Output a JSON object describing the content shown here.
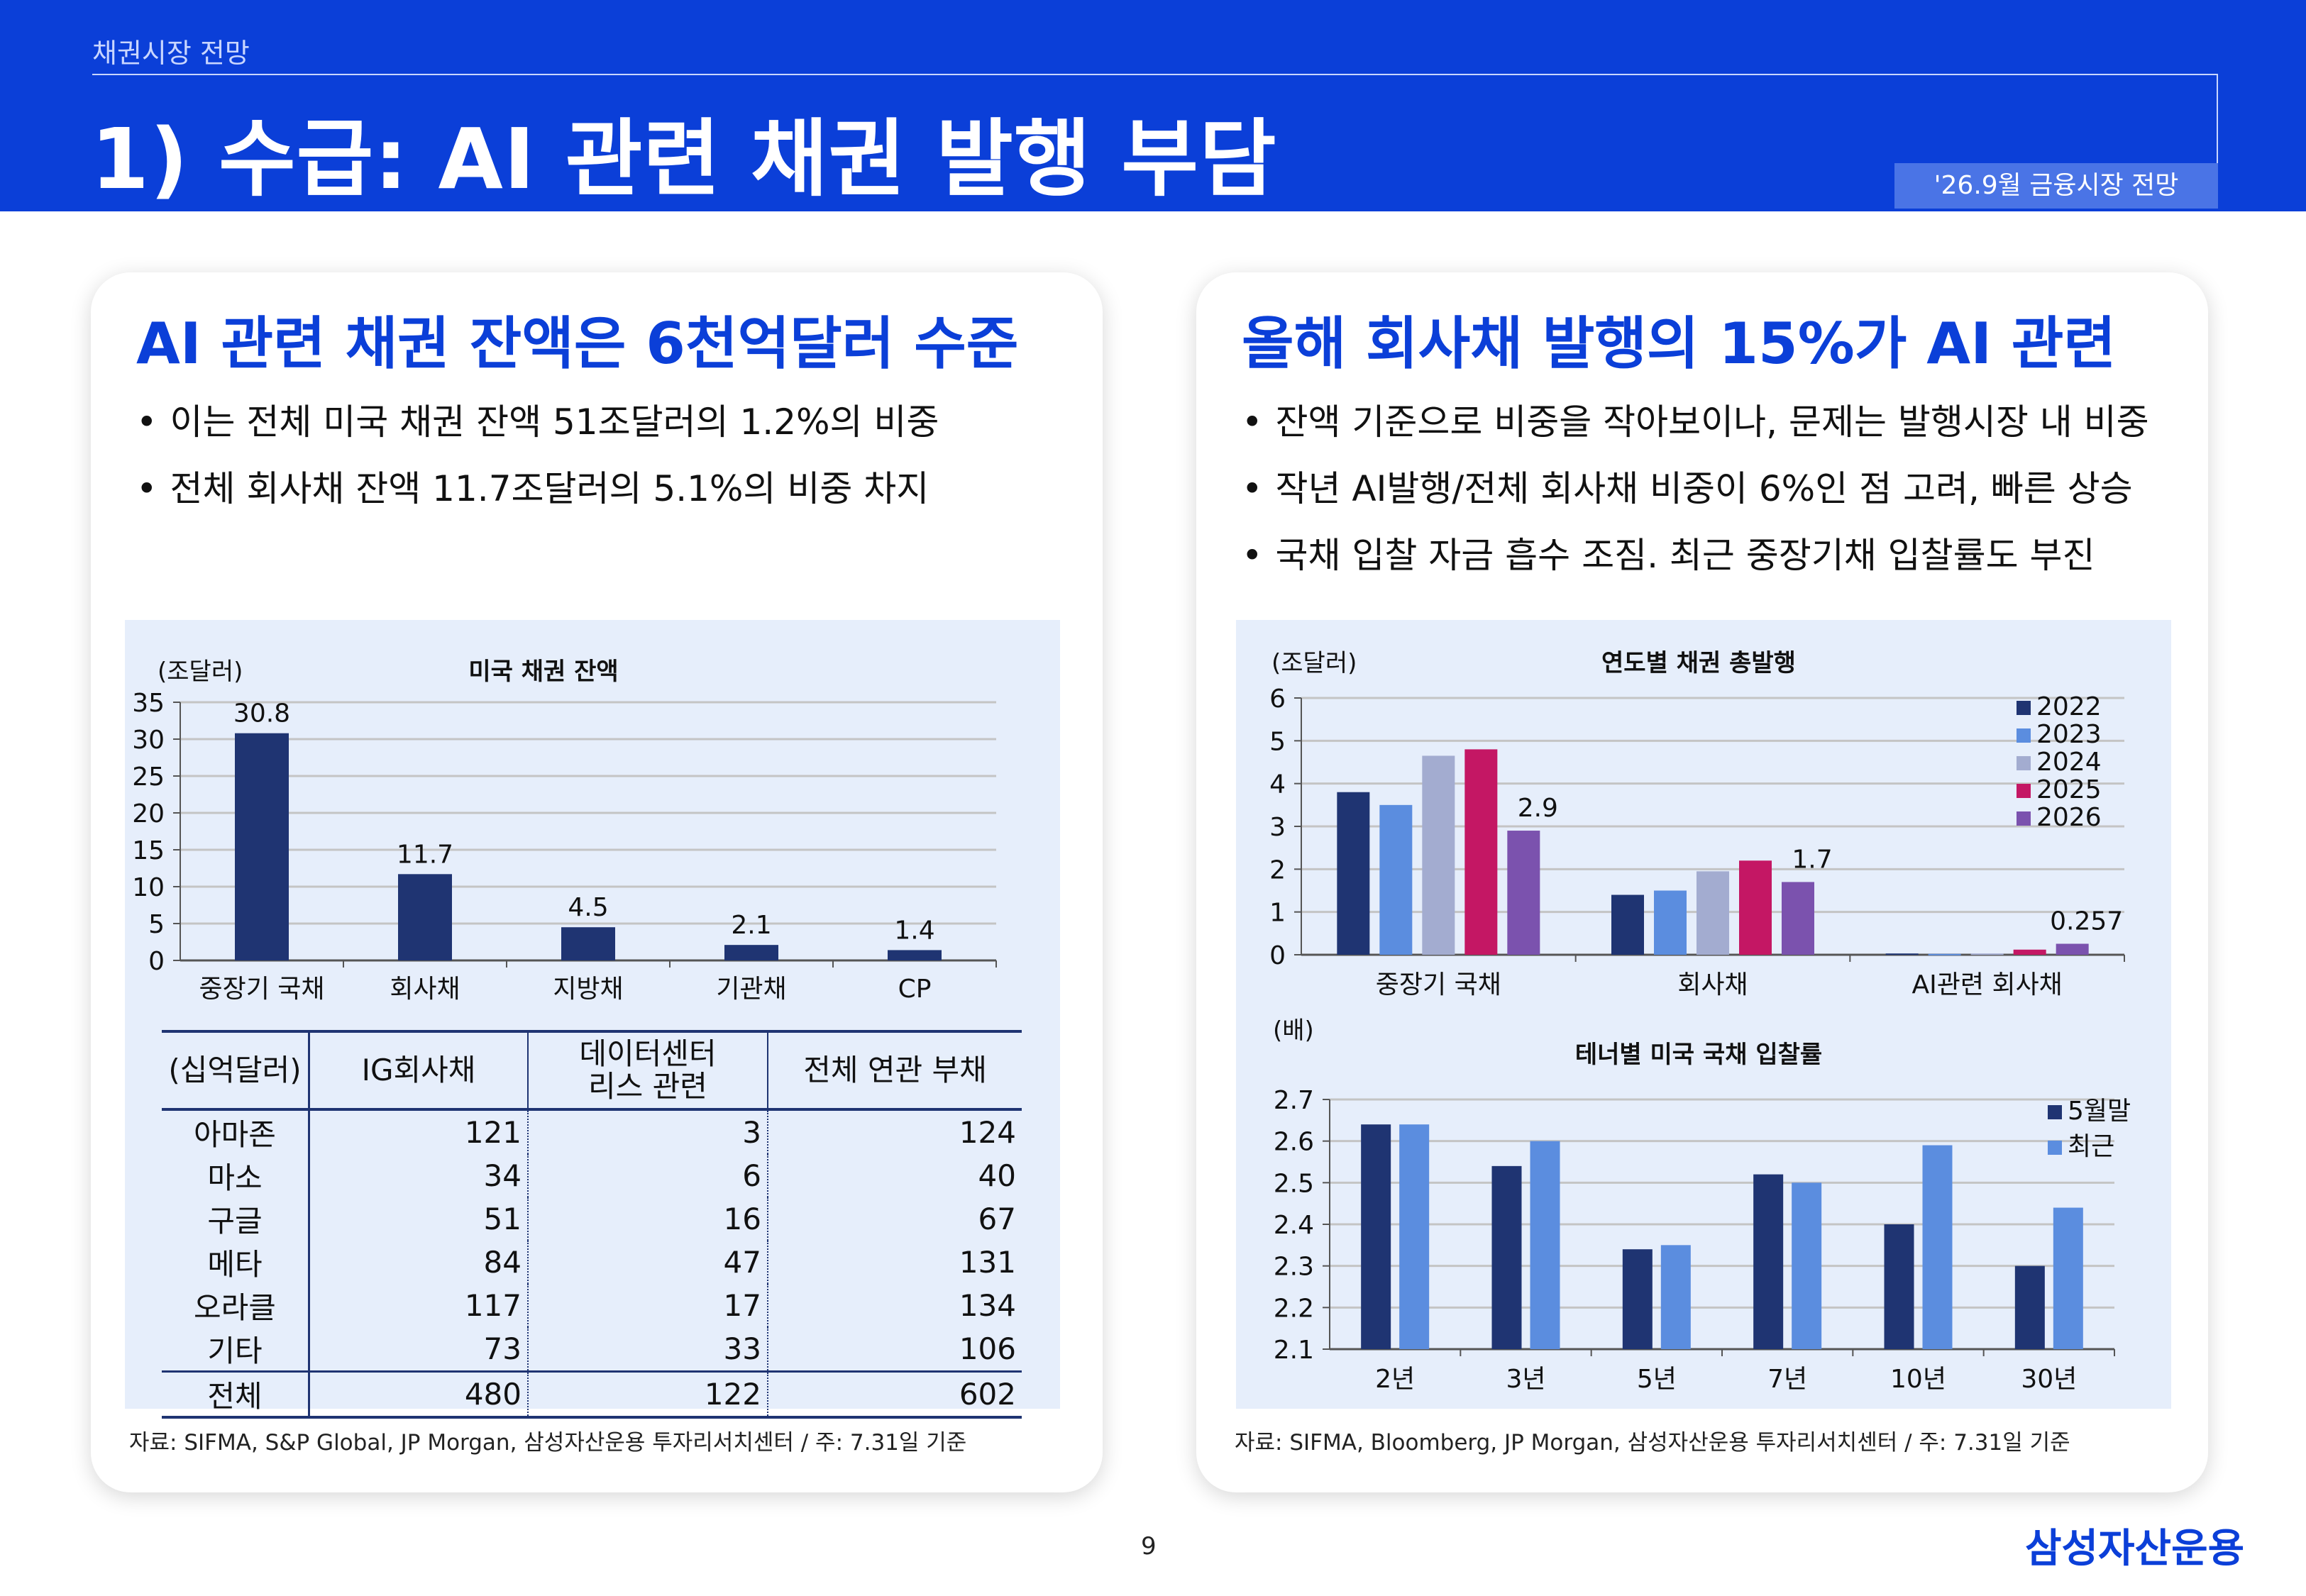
{
  "header": {
    "breadcrumb": "채권시장 전망",
    "title": "1) 수급: AI 관련 채권 발행 부담",
    "tag": "'26.9월 금융시장 전망"
  },
  "left": {
    "title": "AI 관련 채권 잔액은 6천억달러 수준",
    "bullets": [
      "이는 전체 미국 채권 잔액 51조달러의 1.2%의 비중",
      "전체 회사채 잔액 11.7조달러의 5.1%의 비중 차지"
    ],
    "source": "자료: SIFMA, S&P Global, JP Morgan, 삼성자산운용 투자리서치센터 / 주: 7.31일 기준",
    "table": {
      "headers": [
        "(십억달러)",
        "IG회사채",
        "데이터센터\n리스 관련",
        "전체 연관 부채"
      ],
      "rows": [
        [
          "아마존",
          "121",
          "3",
          "124"
        ],
        [
          "마소",
          "34",
          "6",
          "40"
        ],
        [
          "구글",
          "51",
          "16",
          "67"
        ],
        [
          "메타",
          "84",
          "47",
          "131"
        ],
        [
          "오라클",
          "117",
          "17",
          "134"
        ],
        [
          "기타",
          "73",
          "33",
          "106"
        ]
      ],
      "total": [
        "전체",
        "480",
        "122",
        "602"
      ]
    }
  },
  "right": {
    "title": "올해 회사채 발행의 15%가  AI 관련",
    "bullets": [
      "잔액 기준으로 비중을 작아보이나, 문제는 발행시장 내 비중",
      "작년 AI발행/전체 회사채 비중이 6%인 점 고려, 빠른 상승",
      "국채 입찰 자금 흡수 조짐. 최근 중장기채 입찰률도 부진"
    ],
    "source": "자료: SIFMA, Bloomberg, JP Morgan, 삼성자산운용 투자리서치센터 / 주: 7.31일 기준"
  },
  "page_number": "9",
  "logo_text": "삼성자산운용",
  "colors": {
    "brand_blue": "#0b3fd8",
    "navy": "#1f3472",
    "blue": "#5b8ddf",
    "lavender": "#a3acd0",
    "magenta": "#c41764",
    "purple": "#7b52ae"
  },
  "chart_data": [
    {
      "id": "us_bond_outstanding",
      "type": "bar",
      "title": "미국 채권 잔액",
      "unit_label": "(조달러)",
      "categories": [
        "중장기 국채",
        "회사채",
        "지방채",
        "기관채",
        "CP"
      ],
      "values": [
        30.8,
        11.7,
        4.5,
        2.1,
        1.4
      ],
      "data_labels": [
        "30.8",
        "11.7",
        "4.5",
        "2.1",
        "1.4"
      ],
      "ylim": [
        0,
        35
      ],
      "yticks": [
        0,
        5,
        10,
        15,
        20,
        25,
        30,
        35
      ],
      "grid": true
    },
    {
      "id": "annual_issuance",
      "type": "bar",
      "title": "연도별 채권 총발행",
      "unit_label": "(조달러)",
      "categories": [
        "중장기 국채",
        "회사채",
        "AI관련 회사채"
      ],
      "series": [
        {
          "name": "2022",
          "values": [
            3.8,
            1.4,
            0.03
          ]
        },
        {
          "name": "2023",
          "values": [
            3.5,
            1.5,
            0.02
          ]
        },
        {
          "name": "2024",
          "values": [
            4.65,
            1.95,
            0.03
          ]
        },
        {
          "name": "2025",
          "values": [
            4.8,
            2.2,
            0.12
          ]
        },
        {
          "name": "2026",
          "values": [
            2.9,
            1.7,
            0.257
          ]
        }
      ],
      "data_labels": [
        {
          "series": "2026",
          "category": "중장기 국채",
          "text": "2.9"
        },
        {
          "series": "2026",
          "category": "회사채",
          "text": "1.7"
        },
        {
          "series": "2026",
          "category": "AI관련 회사채",
          "text": "0.257"
        }
      ],
      "ylim": [
        0,
        6
      ],
      "yticks": [
        0,
        1,
        2,
        3,
        4,
        5,
        6
      ],
      "legend": "top-right",
      "grid": true
    },
    {
      "id": "bid_to_cover",
      "type": "bar",
      "title": "테너별 미국 국채 입찰률",
      "unit_label": "(배)",
      "categories": [
        "2년",
        "3년",
        "5년",
        "7년",
        "10년",
        "30년"
      ],
      "series": [
        {
          "name": "5월말",
          "values": [
            2.64,
            2.54,
            2.34,
            2.52,
            2.4,
            2.3
          ]
        },
        {
          "name": "최근",
          "values": [
            2.64,
            2.6,
            2.35,
            2.5,
            2.59,
            2.44
          ]
        }
      ],
      "ylim": [
        2.1,
        2.7
      ],
      "yticks": [
        "2.1",
        "2.2",
        "2.3",
        "2.4",
        "2.5",
        "2.6",
        "2.7"
      ],
      "legend": "top-right",
      "grid": true
    }
  ]
}
